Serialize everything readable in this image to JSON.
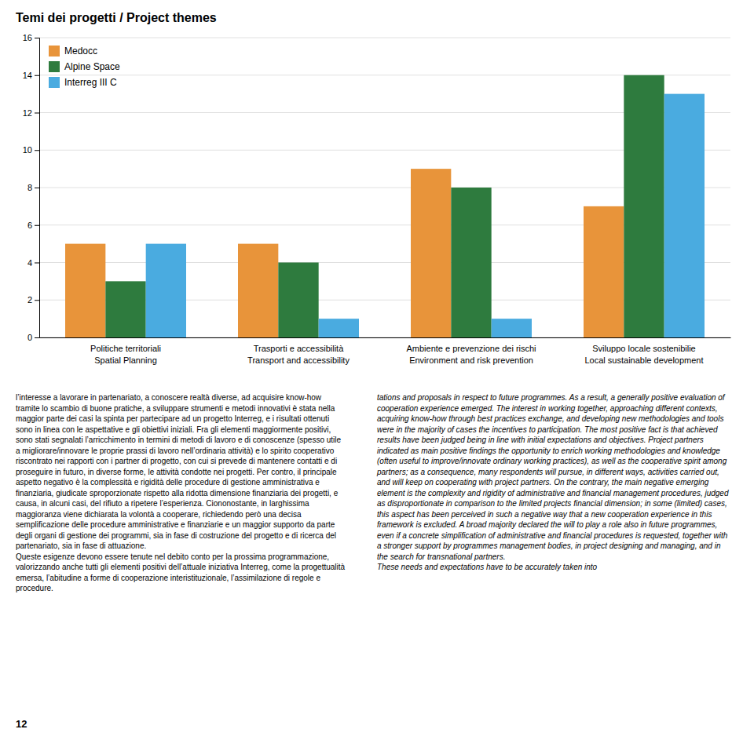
{
  "chart_data": {
    "type": "bar",
    "title": "Temi dei progetti / Project themes",
    "categories": [
      "Politiche territoriali\nSpatial Planning",
      "Trasporti e accessibilità\nTransport and accessibility",
      "Ambiente e prevenzione dei rischi\nEnvironment and risk prevention",
      "Sviluppo locale sostenibilie\nLocal sustainable development"
    ],
    "series": [
      {
        "name": "Medocc",
        "color": "#E8943A",
        "values": [
          5,
          5,
          9,
          7
        ]
      },
      {
        "name": "Alpine Space",
        "color": "#2E7B3E",
        "values": [
          3,
          4,
          8,
          14
        ]
      },
      {
        "name": "Interreg III C",
        "color": "#4AABE0",
        "values": [
          5,
          1,
          1,
          13
        ]
      }
    ],
    "ylim": [
      0,
      16
    ],
    "yticks": [
      0,
      2,
      4,
      6,
      8,
      10,
      12,
      14,
      16
    ],
    "grid": true,
    "legend": "upper left",
    "annotations": [
      "l’interesse a lavorare in partenariato, a conoscere realtà diverse, ad acquisire know-how tramite lo scambio di buone pratiche, a sviluppare strumenti e metodi innovativi è stata nella maggior parte dei casi la spinta per partecipare ad un progetto Interreg, e i risultati ottenuti sono in linea con le aspettative e gli obiettivi iniziali. Fra gli elementi maggiormente positivi, sono stati segnalati l’arricchimento in termini di metodi di lavoro e di conoscenze (spesso utile a migliorare/innovare le proprie prassi di lavoro nell’ordinaria attività) e lo spirito cooperativo riscontrato nei rapporti con i partner di progetto, con cui si prevede di mantenere contatti e di proseguire in futuro, in diverse forme, le attività condotte nei progetti. Per contro, il principale aspetto negativo è la complessità e rigidità delle procedure di gestione amministrativa e finanziaria, giudicate sproporzionate rispetto alla ridotta dimensione finanziaria dei progetti, e causa, in alcuni casi, del rifiuto a ripetere l’esperienza. Ciononostante, in larghissima maggioranza viene dichiarata la volontà a cooperare, richiedendo però una decisa semplificazione delle procedure amministrative e finanziarie e un maggior supporto da parte degli organi di gestione dei programmi, sia in fase di costruzione del progetto e di ricerca del partenariato, sia in fase di attuazione.\nQueste esigenze devono essere tenute nel debito conto per la prossima programmazione, valorizzando anche tutti gli elementi positivi dell’attuale iniziativa Interreg, come la progettualità emersa, l’abitudine a forme di cooperazione interistituzionale, l’assimilazione di regole e procedure.",
      "tations and proposals in respect to future programmes. As a result, a generally positive evaluation of cooperation experience emerged. The interest in working together, approaching different contexts, acquiring know-how through best practices exchange, and developing new methodologies and tools were in the majority of cases the incentives to participation. The most positive fact is that achieved results have been judged being in line with initial expectations and objectives. Project partners indicated as main positive findings the opportunity to enrich working methodologies and knowledge (often useful to improve/innovate ordinary working practices), as well as the cooperative spirit among partners; as a consequence, many respondents will pursue, in different ways, activities carried out, and will keep on cooperating with project partners. On the contrary, the main negative emerging element is the complexity and rigidity of administrative and financial management procedures, judged as disproportionate in comparison to the limited projects financial dimension; in some (limited) cases, this aspect has been perceived in such a negative way that a new cooperation experience in this framework is excluded. A broad majority declared the will to play a role also in future programmes, even if a concrete simplification of administrative and financial procedures is requested, together with a stronger support by programmes management bodies, in project designing and managing, and in the search for transnational partners.\nThese needs and expectations have to be accurately taken into",
      "12"
    ]
  }
}
